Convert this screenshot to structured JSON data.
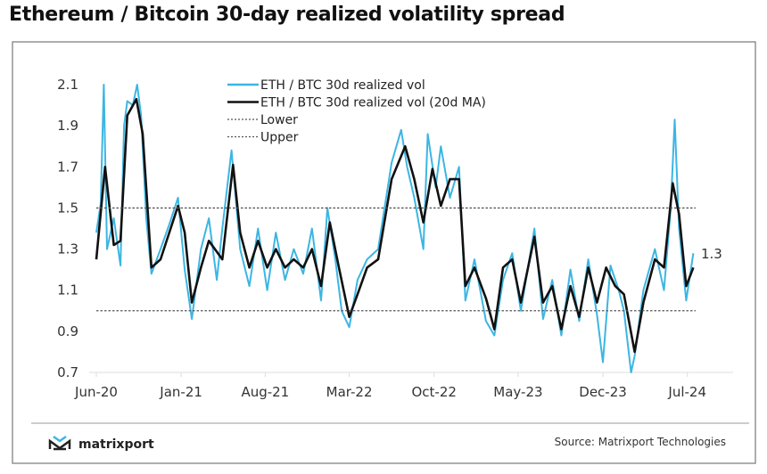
{
  "chart_data": {
    "type": "line",
    "title": "Ethereum / Bitcoin 30-day realized volatility spread",
    "xlabel": "",
    "ylabel": "",
    "ylim": [
      0.7,
      2.1
    ],
    "yticks": [
      "2.1",
      "1.9",
      "1.7",
      "1.5",
      "1.3",
      "1.1",
      "0.9",
      "0.7"
    ],
    "xlim": [
      "2020-06-01",
      "2024-09-01"
    ],
    "xticks": [
      {
        "label": "Jun-20",
        "date": "2020-06-01"
      },
      {
        "label": "Jan-21",
        "date": "2021-01-01"
      },
      {
        "label": "Aug-21",
        "date": "2021-08-01"
      },
      {
        "label": "Mar-22",
        "date": "2022-03-01"
      },
      {
        "label": "Oct-22",
        "date": "2022-10-01"
      },
      {
        "label": "May-23",
        "date": "2023-05-01"
      },
      {
        "label": "Dec-23",
        "date": "2023-12-01"
      },
      {
        "label": "Jul-24",
        "date": "2024-07-01"
      }
    ],
    "grid": false,
    "legend_position": "top",
    "end_label": "1.3",
    "series": [
      {
        "name": "ETH / BTC 30d realized vol",
        "color": "#3cb6e3",
        "style": "solid",
        "x": [
          "2020-06-01",
          "2020-06-12",
          "2020-06-20",
          "2020-06-28",
          "2020-07-15",
          "2020-08-01",
          "2020-08-10",
          "2020-08-18",
          "2020-09-01",
          "2020-09-12",
          "2020-09-22",
          "2020-10-05",
          "2020-10-18",
          "2020-11-10",
          "2020-12-02",
          "2020-12-24",
          "2021-01-10",
          "2021-01-28",
          "2021-02-20",
          "2021-03-12",
          "2021-04-01",
          "2021-04-15",
          "2021-05-08",
          "2021-05-30",
          "2021-06-22",
          "2021-07-14",
          "2021-08-06",
          "2021-08-28",
          "2021-09-20",
          "2021-10-12",
          "2021-11-05",
          "2021-11-27",
          "2021-12-20",
          "2022-01-05",
          "2022-01-25",
          "2022-02-10",
          "2022-03-01",
          "2022-03-22",
          "2022-04-15",
          "2022-05-13",
          "2022-06-16",
          "2022-07-10",
          "2022-07-25",
          "2022-08-12",
          "2022-09-04",
          "2022-09-15",
          "2022-10-05",
          "2022-10-18",
          "2022-11-10",
          "2022-12-03",
          "2022-12-19",
          "2023-01-11",
          "2023-02-09",
          "2023-03-02",
          "2023-03-24",
          "2023-04-16",
          "2023-05-08",
          "2023-06-11",
          "2023-07-03",
          "2023-07-26",
          "2023-08-18",
          "2023-09-10",
          "2023-10-02",
          "2023-10-25",
          "2023-11-16",
          "2023-12-01",
          "2023-12-20",
          "2024-01-10",
          "2024-01-23",
          "2024-02-10",
          "2024-02-19",
          "2024-03-12",
          "2024-04-10",
          "2024-05-03",
          "2024-05-20",
          "2024-05-30",
          "2024-06-10",
          "2024-06-28",
          "2024-07-16"
        ],
        "values": [
          1.38,
          1.52,
          2.1,
          1.3,
          1.45,
          1.22,
          1.9,
          2.02,
          2.0,
          2.1,
          1.95,
          1.45,
          1.18,
          1.3,
          1.42,
          1.55,
          1.2,
          0.96,
          1.3,
          1.45,
          1.15,
          1.4,
          1.78,
          1.3,
          1.12,
          1.4,
          1.1,
          1.38,
          1.15,
          1.3,
          1.18,
          1.4,
          1.05,
          1.5,
          1.25,
          1.0,
          0.92,
          1.15,
          1.25,
          1.3,
          1.72,
          1.88,
          1.7,
          1.55,
          1.3,
          1.86,
          1.6,
          1.8,
          1.55,
          1.7,
          1.05,
          1.25,
          0.95,
          0.88,
          1.15,
          1.28,
          1.0,
          1.4,
          0.96,
          1.15,
          0.88,
          1.2,
          0.95,
          1.25,
          0.98,
          0.75,
          1.22,
          1.1,
          1.0,
          0.7,
          0.78,
          1.1,
          1.3,
          1.1,
          1.5,
          1.93,
          1.4,
          1.05,
          1.28
        ]
      },
      {
        "name": "ETH / BTC 30d realized vol (20d MA)",
        "color": "#111111",
        "style": "solid",
        "x": [
          "2020-06-01",
          "2020-06-23",
          "2020-07-15",
          "2020-08-01",
          "2020-08-18",
          "2020-09-10",
          "2020-09-26",
          "2020-10-18",
          "2020-11-10",
          "2020-12-02",
          "2020-12-24",
          "2021-01-10",
          "2021-01-28",
          "2021-02-20",
          "2021-03-12",
          "2021-04-15",
          "2021-05-12",
          "2021-05-30",
          "2021-06-22",
          "2021-07-14",
          "2021-08-06",
          "2021-08-28",
          "2021-09-20",
          "2021-10-12",
          "2021-11-05",
          "2021-11-27",
          "2021-12-20",
          "2022-01-11",
          "2022-02-03",
          "2022-03-01",
          "2022-03-22",
          "2022-04-15",
          "2022-05-13",
          "2022-06-16",
          "2022-07-20",
          "2022-08-12",
          "2022-09-04",
          "2022-09-27",
          "2022-10-18",
          "2022-11-10",
          "2022-12-03",
          "2022-12-19",
          "2023-01-11",
          "2023-02-09",
          "2023-03-02",
          "2023-03-24",
          "2023-04-16",
          "2023-05-08",
          "2023-06-11",
          "2023-07-03",
          "2023-07-26",
          "2023-08-18",
          "2023-09-10",
          "2023-10-02",
          "2023-10-25",
          "2023-11-16",
          "2023-12-09",
          "2024-01-01",
          "2024-01-23",
          "2024-02-19",
          "2024-03-12",
          "2024-04-10",
          "2024-05-03",
          "2024-05-25",
          "2024-06-10",
          "2024-06-28",
          "2024-07-16"
        ],
        "values": [
          1.25,
          1.7,
          1.32,
          1.34,
          1.95,
          2.03,
          1.86,
          1.21,
          1.25,
          1.38,
          1.51,
          1.38,
          1.04,
          1.21,
          1.34,
          1.25,
          1.71,
          1.38,
          1.21,
          1.34,
          1.21,
          1.3,
          1.21,
          1.25,
          1.21,
          1.3,
          1.12,
          1.43,
          1.21,
          0.97,
          1.08,
          1.21,
          1.25,
          1.64,
          1.8,
          1.64,
          1.43,
          1.69,
          1.51,
          1.64,
          1.64,
          1.12,
          1.21,
          1.06,
          0.91,
          1.21,
          1.25,
          1.04,
          1.36,
          1.04,
          1.12,
          0.91,
          1.12,
          0.97,
          1.21,
          1.04,
          1.21,
          1.12,
          1.08,
          0.8,
          1.04,
          1.25,
          1.21,
          1.62,
          1.47,
          1.12,
          1.21
        ]
      },
      {
        "name": "Lower",
        "color": "#555555",
        "style": "dotted",
        "value": 1.0
      },
      {
        "name": "Upper",
        "color": "#555555",
        "style": "dotted",
        "value": 1.5
      }
    ]
  },
  "footer": {
    "brand": "matrixport",
    "source": "Source: Matrixport Technologies"
  }
}
